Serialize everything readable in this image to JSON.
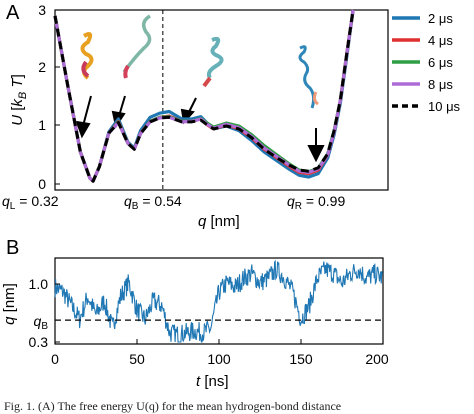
{
  "chart_data": [
    {
      "panel": "A",
      "type": "line",
      "xlabel": "q [nm]",
      "ylabel": "U [k_B T]",
      "ylim": [
        0,
        3
      ],
      "yticks": [
        "0",
        "1",
        "2",
        "3"
      ],
      "xlim": [
        0.2,
        1.25
      ],
      "annotations": [
        "q_L = 0.32",
        "q_B = 0.54",
        "q_R = 0.99"
      ],
      "annotation_q": [
        0.32,
        0.54,
        0.99
      ],
      "vline_q": 0.54,
      "legend_position": "top-right",
      "series": [
        {
          "name": "2 μs",
          "color": "#1f77b4",
          "style": "solid",
          "x": [
            0.2,
            0.24,
            0.28,
            0.31,
            0.32,
            0.34,
            0.37,
            0.4,
            0.43,
            0.45,
            0.47,
            0.5,
            0.53,
            0.56,
            0.6,
            0.63,
            0.66,
            0.68,
            0.7,
            0.74,
            0.78,
            0.82,
            0.86,
            0.9,
            0.94,
            0.97,
            1.0,
            1.03,
            1.06,
            1.08,
            1.1,
            1.12,
            1.14
          ],
          "y": [
            2.9,
            1.7,
            0.55,
            0.1,
            0.05,
            0.3,
            0.9,
            1.12,
            0.72,
            0.62,
            0.92,
            1.15,
            1.22,
            1.25,
            1.12,
            1.12,
            1.16,
            1.05,
            0.95,
            1.0,
            0.92,
            0.75,
            0.55,
            0.4,
            0.25,
            0.15,
            0.12,
            0.18,
            0.45,
            0.85,
            1.4,
            2.2,
            3.0
          ]
        },
        {
          "name": "4 μs",
          "color": "#e03131",
          "style": "solid",
          "x": [
            0.2,
            0.24,
            0.28,
            0.31,
            0.32,
            0.34,
            0.37,
            0.4,
            0.43,
            0.45,
            0.47,
            0.5,
            0.53,
            0.56,
            0.6,
            0.63,
            0.66,
            0.68,
            0.7,
            0.74,
            0.78,
            0.82,
            0.86,
            0.9,
            0.94,
            0.97,
            1.0,
            1.03,
            1.06,
            1.08,
            1.1,
            1.12,
            1.14
          ],
          "y": [
            2.9,
            1.7,
            0.55,
            0.1,
            0.05,
            0.3,
            0.88,
            1.08,
            0.7,
            0.6,
            0.88,
            1.08,
            1.15,
            1.17,
            1.08,
            1.08,
            1.12,
            1.02,
            0.95,
            1.02,
            0.95,
            0.8,
            0.6,
            0.45,
            0.3,
            0.2,
            0.18,
            0.24,
            0.5,
            0.9,
            1.45,
            2.25,
            3.0
          ]
        },
        {
          "name": "6 μs",
          "color": "#2f9e44",
          "style": "solid",
          "x": [
            0.2,
            0.24,
            0.28,
            0.31,
            0.32,
            0.34,
            0.37,
            0.4,
            0.43,
            0.45,
            0.47,
            0.5,
            0.53,
            0.56,
            0.6,
            0.63,
            0.66,
            0.68,
            0.7,
            0.74,
            0.78,
            0.82,
            0.86,
            0.9,
            0.94,
            0.97,
            1.0,
            1.03,
            1.06,
            1.08,
            1.1,
            1.12,
            1.14
          ],
          "y": [
            2.9,
            1.7,
            0.55,
            0.1,
            0.05,
            0.3,
            0.88,
            1.07,
            0.7,
            0.6,
            0.87,
            1.08,
            1.15,
            1.16,
            1.08,
            1.08,
            1.13,
            1.05,
            0.98,
            1.05,
            1.0,
            0.85,
            0.66,
            0.5,
            0.34,
            0.24,
            0.21,
            0.27,
            0.52,
            0.92,
            1.45,
            2.25,
            3.0
          ]
        },
        {
          "name": "8 μs",
          "color": "#ae6bd6",
          "style": "solid",
          "x": [
            0.2,
            0.24,
            0.28,
            0.31,
            0.32,
            0.34,
            0.37,
            0.4,
            0.43,
            0.45,
            0.47,
            0.5,
            0.53,
            0.56,
            0.6,
            0.63,
            0.66,
            0.68,
            0.7,
            0.74,
            0.78,
            0.82,
            0.86,
            0.9,
            0.94,
            0.97,
            1.0,
            1.03,
            1.06,
            1.08,
            1.1,
            1.12,
            1.14
          ],
          "y": [
            2.9,
            1.7,
            0.55,
            0.1,
            0.05,
            0.3,
            0.88,
            1.06,
            0.7,
            0.6,
            0.87,
            1.07,
            1.14,
            1.15,
            1.07,
            1.08,
            1.12,
            1.03,
            0.96,
            1.03,
            0.97,
            0.82,
            0.62,
            0.47,
            0.32,
            0.22,
            0.2,
            0.26,
            0.5,
            0.9,
            1.45,
            2.25,
            3.0
          ]
        },
        {
          "name": "10 μs",
          "color": "#000000",
          "style": "dashed",
          "x": [
            0.2,
            0.24,
            0.28,
            0.31,
            0.32,
            0.34,
            0.37,
            0.4,
            0.43,
            0.45,
            0.47,
            0.5,
            0.53,
            0.56,
            0.6,
            0.63,
            0.66,
            0.68,
            0.7,
            0.74,
            0.78,
            0.82,
            0.86,
            0.9,
            0.94,
            0.97,
            1.0,
            1.03,
            1.06,
            1.08,
            1.1,
            1.12,
            1.14
          ],
          "y": [
            2.9,
            1.7,
            0.55,
            0.1,
            0.05,
            0.3,
            0.88,
            1.06,
            0.7,
            0.6,
            0.87,
            1.07,
            1.14,
            1.15,
            1.07,
            1.07,
            1.1,
            1.02,
            0.95,
            1.0,
            0.95,
            0.8,
            0.6,
            0.45,
            0.32,
            0.24,
            0.22,
            0.28,
            0.52,
            0.92,
            1.45,
            2.25,
            3.0
          ]
        }
      ]
    },
    {
      "panel": "B",
      "type": "line",
      "xlabel": "t [ns]",
      "ylabel": "q [nm]",
      "xlim": [
        0,
        200
      ],
      "xticks": [
        "0",
        "50",
        "100",
        "150",
        "200"
      ],
      "ylim": [
        0.3,
        1.2
      ],
      "yticks": [
        "0.3",
        "q_B",
        "1.0"
      ],
      "hline_q": 0.54,
      "series": [
        {
          "name": "",
          "color": "#1f77b4",
          "x": [
            0,
            5,
            10,
            15,
            20,
            25,
            30,
            35,
            40,
            45,
            50,
            55,
            60,
            65,
            70,
            75,
            80,
            85,
            90,
            95,
            100,
            105,
            110,
            115,
            120,
            125,
            130,
            135,
            140,
            145,
            150,
            155,
            160,
            165,
            170,
            175,
            180,
            185,
            190,
            195,
            200
          ],
          "y": [
            0.9,
            0.85,
            0.7,
            0.55,
            0.8,
            0.6,
            0.75,
            0.45,
            0.8,
            0.95,
            0.65,
            0.55,
            0.75,
            0.7,
            0.4,
            0.38,
            0.4,
            0.42,
            0.4,
            0.45,
            0.85,
            0.95,
            0.9,
            1.0,
            1.05,
            0.95,
            1.0,
            1.1,
            1.0,
            0.85,
            0.55,
            0.7,
            1.0,
            1.1,
            1.05,
            0.95,
            1.05,
            1.1,
            1.0,
            1.05,
            1.0
          ]
        }
      ]
    }
  ],
  "figure": {
    "panel_a_label": "A",
    "panel_b_label": "B",
    "panel_a_ytick_0": "0",
    "panel_a_ytick_1": "1",
    "panel_a_ytick_2": "2",
    "panel_a_ytick_3": "3",
    "panel_b_xtick_0": "0",
    "panel_b_xtick_50": "50",
    "panel_b_xtick_100": "100",
    "panel_b_xtick_150": "150",
    "panel_b_xtick_200": "200",
    "panel_b_ytick_low": "0.3",
    "panel_b_ytick_high": "1.0"
  },
  "caption": {
    "text": "Fig. 1.  (A) The free energy U(q) for the mean hydrogen-bond distance"
  }
}
